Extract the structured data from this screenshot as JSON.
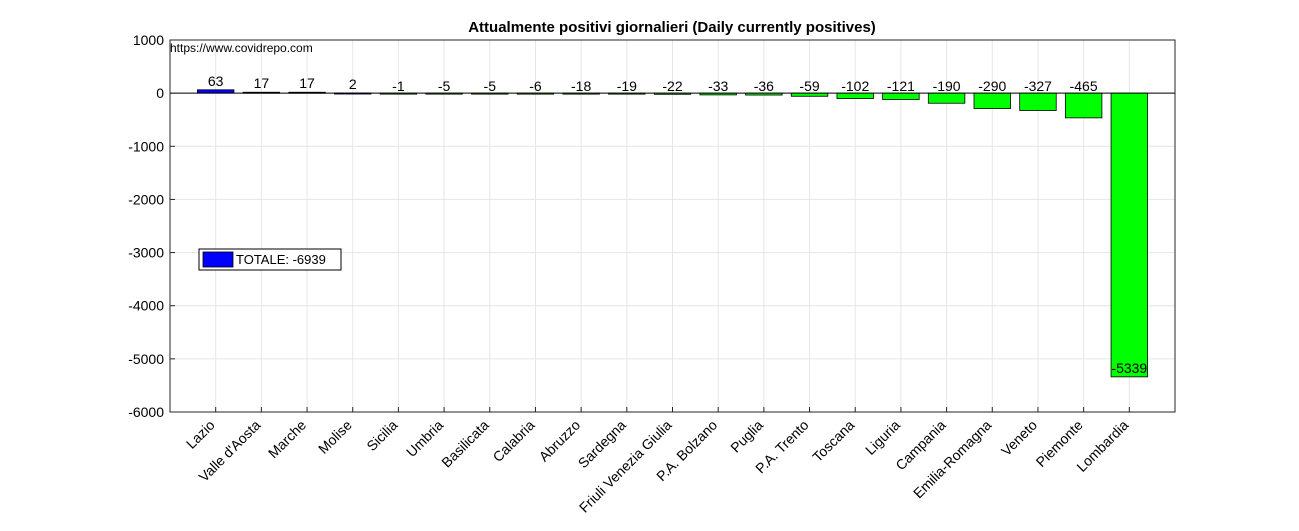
{
  "chart_data": {
    "type": "bar",
    "title": "Attualmente positivi giornalieri (Daily currently positives)",
    "source_note": "https://www.covidrepo.com",
    "xlabel": "",
    "ylabel": "",
    "ylim": [
      -6000,
      1000
    ],
    "yticks": [
      1000,
      0,
      -1000,
      -2000,
      -3000,
      -4000,
      -5000,
      -6000
    ],
    "grid": true,
    "categories": [
      "Lazio",
      "Valle d'Aosta",
      "Marche",
      "Molise",
      "Sicilia",
      "Umbria",
      "Basilicata",
      "Calabria",
      "Abruzzo",
      "Sardegna",
      "Friuli Venezia Giulia",
      "P.A. Bolzano",
      "Puglia",
      "P.A. Trento",
      "Toscana",
      "Liguria",
      "Campania",
      "Emilia-Romagna",
      "Veneto",
      "Piemonte",
      "Lombardia"
    ],
    "values": [
      63,
      17,
      17,
      2,
      -1,
      -5,
      -5,
      -6,
      -18,
      -19,
      -22,
      -33,
      -36,
      -59,
      -102,
      -121,
      -190,
      -290,
      -327,
      -465,
      -5339
    ],
    "colors": {
      "positive": "#0000ff",
      "negative": "#00ff00",
      "edge": "#000000",
      "grid": "#e6e6e6"
    },
    "legend": {
      "label": "TOTALE: -6939",
      "color": "#0000ff",
      "placement": "middle-left"
    }
  }
}
